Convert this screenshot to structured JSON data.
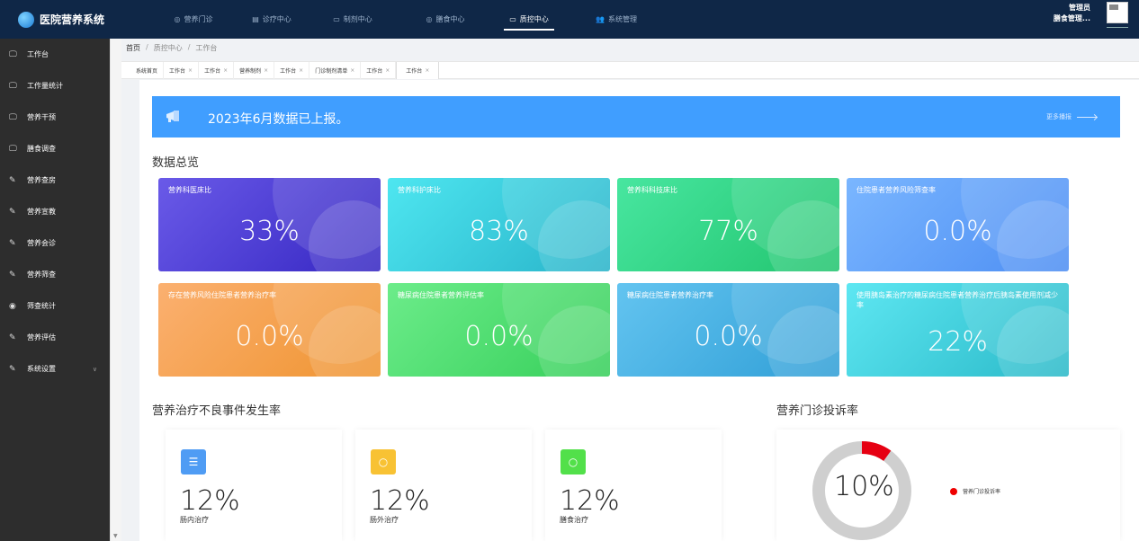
{
  "app": {
    "title": "医院营养系统"
  },
  "topnav": [
    {
      "icon": "◎",
      "label": "营养门诊",
      "active": false
    },
    {
      "icon": "▤",
      "label": "诊疗中心",
      "active": false
    },
    {
      "icon": "▭",
      "label": "制剂中心",
      "active": false
    },
    {
      "icon": "◎",
      "label": "膳食中心",
      "active": false
    },
    {
      "icon": "▭",
      "label": "质控中心",
      "active": true
    },
    {
      "icon": "👥",
      "label": "系统管理",
      "active": false
    }
  ],
  "user": {
    "role": "管理员",
    "name": "膳食管理..."
  },
  "sidebar": [
    {
      "icon": "🖵",
      "label": "工作台"
    },
    {
      "icon": "🖵",
      "label": "工作量统计"
    },
    {
      "icon": "🖵",
      "label": "营养干预"
    },
    {
      "icon": "🖵",
      "label": "膳食调查"
    },
    {
      "icon": "✎",
      "label": "营养查房"
    },
    {
      "icon": "✎",
      "label": "营养宣教"
    },
    {
      "icon": "✎",
      "label": "营养会诊"
    },
    {
      "icon": "✎",
      "label": "营养筛查"
    },
    {
      "icon": "◉",
      "label": "筛查统计"
    },
    {
      "icon": "✎",
      "label": "营养评估"
    },
    {
      "icon": "✎",
      "label": "系统设置",
      "chevron": "∨"
    }
  ],
  "breadcrumb": {
    "home": "首页",
    "sep": "/",
    "level1": "质控中心",
    "level2": "工作台"
  },
  "tabs": [
    {
      "label": "系统首页",
      "closable": false
    },
    {
      "label": "工作台",
      "closable": true
    },
    {
      "label": "工作台",
      "closable": true
    },
    {
      "label": "营养制剂",
      "closable": true
    },
    {
      "label": "工作台",
      "closable": true
    },
    {
      "label": "门诊制剂清单",
      "closable": true
    },
    {
      "label": "工作台",
      "closable": true
    },
    {
      "label": "工作台",
      "closable": true,
      "active": true
    }
  ],
  "tab_close": "×",
  "banner": {
    "text": "2023年6月数据已上报。",
    "more": "更多播报"
  },
  "overview": {
    "title": "数据总览",
    "cards": [
      {
        "label": "营养科医床比",
        "value": "33%",
        "colors": [
          "#6a5ae8",
          "#3526c2"
        ]
      },
      {
        "label": "营养科护床比",
        "value": "83%",
        "colors": [
          "#4ee6f0",
          "#28b3c9"
        ]
      },
      {
        "label": "营养科科技床比",
        "value": "77%",
        "colors": [
          "#48e6a0",
          "#21c46e"
        ]
      },
      {
        "label": "住院患者营养风险筛查率",
        "value": "0.0%",
        "colors": [
          "#7ab6ff",
          "#4d8ef3"
        ]
      },
      {
        "label": "存在营养风险住院患者营养治疗率",
        "value": "0.0%",
        "colors": [
          "#fbb070",
          "#ef9430"
        ]
      },
      {
        "label": "糖尿病住院患者营养评估率",
        "value": "0.0%",
        "colors": [
          "#6cec8a",
          "#36cf5a"
        ]
      },
      {
        "label": "糖尿病住院患者营养治疗率",
        "value": "0.0%",
        "colors": [
          "#63c4f0",
          "#2f9ed6"
        ]
      },
      {
        "label": "使用胰岛素治疗的糖尿病住院患者营养治疗后胰岛素使用剂减少率",
        "value": "22%",
        "colors": [
          "#5ee7f2",
          "#2ab9c8"
        ]
      }
    ]
  },
  "adverse": {
    "title": "营养治疗不良事件发生率",
    "items": [
      {
        "icon": "database-icon",
        "glyph": "☰",
        "color": "#4f9cf4",
        "value": "12%",
        "label": "肠内治疗"
      },
      {
        "icon": "circle-icon",
        "glyph": "○",
        "color": "#f8c234",
        "value": "12%",
        "label": "肠外治疗"
      },
      {
        "icon": "circle-icon",
        "glyph": "○",
        "color": "#52e04a",
        "value": "12%",
        "label": "膳食治疗"
      }
    ]
  },
  "complaint": {
    "title": "营养门诊投诉率",
    "value": "10%",
    "fraction": 0.1,
    "legend": "营养门诊投诉率",
    "colors": {
      "fill": "#e60012",
      "track": "#cfcfcf"
    }
  }
}
